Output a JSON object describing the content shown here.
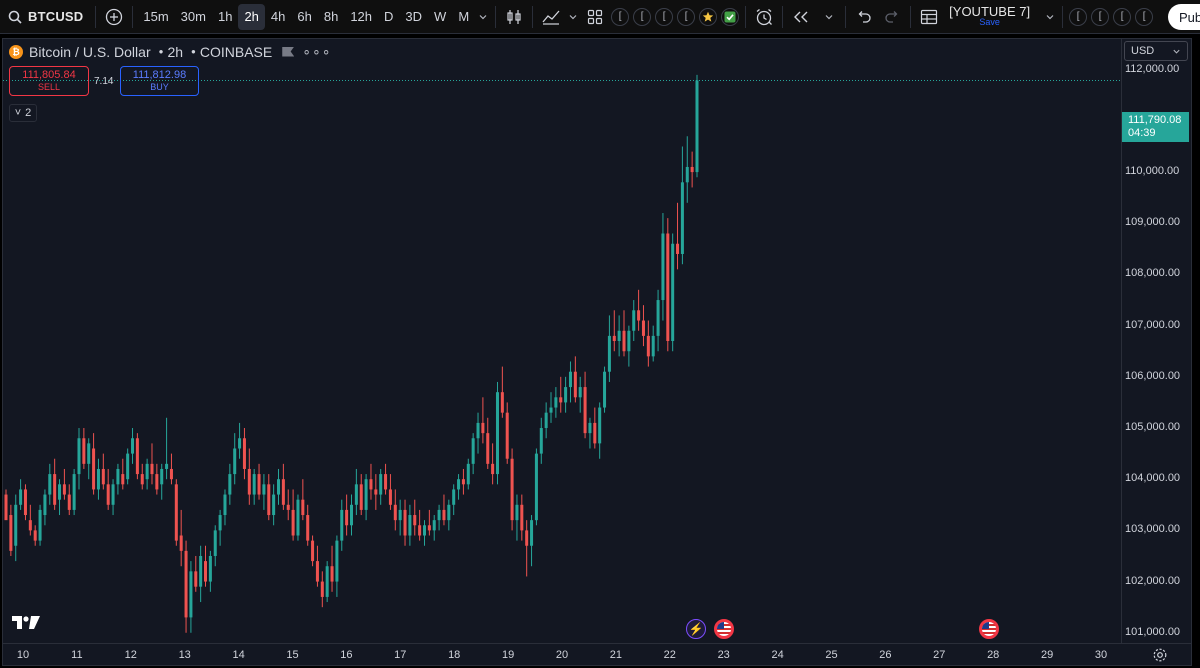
{
  "toolbar": {
    "symbol": "BTCUSD",
    "intervals": [
      "15m",
      "30m",
      "1h",
      "2h",
      "4h",
      "6h",
      "8h",
      "12h",
      "D",
      "3D",
      "W",
      "M"
    ],
    "active_interval": "2h",
    "pill_glyphs": [
      "[",
      "[",
      "[",
      "[",
      "[",
      "[",
      "[",
      "["
    ],
    "layout_title": "[YOUTUBE 7]",
    "layout_save": "Save",
    "publish_label": "Pub"
  },
  "legend": {
    "badge": "₿",
    "name": "Bitcoin",
    "separator": "/",
    "quote": "U.S. Dollar",
    "interval": "2h",
    "exchange": "COINBASE",
    "more": "∘∘∘"
  },
  "trade": {
    "sell_price": "111,805.84",
    "sell_label": "SELL",
    "spread": "7.14",
    "buy_price": "111,812.98",
    "buy_label": "BUY"
  },
  "collapse": {
    "chevron": "˅",
    "count": "2"
  },
  "currency": "USD",
  "current_price": {
    "value": "111,790.08",
    "countdown": "04:39"
  },
  "chart_data": {
    "type": "candlestick",
    "symbol": "BTCUSD",
    "ylim": [
      100800,
      112600
    ],
    "price_ticks": [
      "112,000.00",
      "111,000.00",
      "110,000.00",
      "109,000.00",
      "108,000.00",
      "107,000.00",
      "106,000.00",
      "105,000.00",
      "104,000.00",
      "103,000.00",
      "102,000.00",
      "101,000.00"
    ],
    "date_ticks": [
      "10",
      "11",
      "12",
      "13",
      "14",
      "15",
      "16",
      "17",
      "18",
      "19",
      "20",
      "21",
      "22",
      "23",
      "24",
      "25",
      "26",
      "27",
      "28",
      "29",
      "30"
    ],
    "last_price": 111790.08,
    "candles": [
      [
        103700,
        103800,
        103300,
        103200
      ],
      [
        103300,
        103500,
        102500,
        102600
      ],
      [
        102700,
        103700,
        102400,
        103500
      ],
      [
        103500,
        104000,
        103400,
        103800
      ],
      [
        103800,
        103900,
        103200,
        103300
      ],
      [
        103200,
        103500,
        102900,
        103000
      ],
      [
        103000,
        103100,
        102700,
        102800
      ],
      [
        102800,
        103500,
        102700,
        103400
      ],
      [
        103300,
        103800,
        103100,
        103700
      ],
      [
        103700,
        104300,
        103500,
        104100
      ],
      [
        104100,
        104400,
        103400,
        103500
      ],
      [
        103600,
        104000,
        103300,
        103900
      ],
      [
        103900,
        104200,
        103600,
        103700
      ],
      [
        103700,
        103900,
        103300,
        103400
      ],
      [
        103400,
        104200,
        103300,
        104100
      ],
      [
        104100,
        105000,
        103800,
        104800
      ],
      [
        104800,
        105000,
        104200,
        104300
      ],
      [
        104300,
        104800,
        104000,
        104700
      ],
      [
        104600,
        104900,
        103700,
        103800
      ],
      [
        103800,
        104400,
        103600,
        104200
      ],
      [
        104200,
        104500,
        103800,
        103900
      ],
      [
        103900,
        104200,
        103400,
        103500
      ],
      [
        103500,
        104000,
        103300,
        103900
      ],
      [
        103900,
        104300,
        103700,
        104200
      ],
      [
        104100,
        104400,
        103800,
        103900
      ],
      [
        104000,
        104600,
        103900,
        104500
      ],
      [
        104500,
        105000,
        104300,
        104800
      ],
      [
        104800,
        104900,
        104000,
        104100
      ],
      [
        104100,
        104300,
        103800,
        103900
      ],
      [
        104000,
        104400,
        103800,
        104300
      ],
      [
        104300,
        104700,
        103900,
        104100
      ],
      [
        104100,
        104300,
        103700,
        103800
      ],
      [
        103900,
        104300,
        103600,
        104200
      ],
      [
        104200,
        105200,
        104000,
        104300
      ],
      [
        104200,
        104500,
        103900,
        104000
      ],
      [
        103900,
        104000,
        102700,
        102800
      ],
      [
        102900,
        103400,
        102300,
        102600
      ],
      [
        102600,
        102800,
        101000,
        101300
      ],
      [
        101300,
        102400,
        101000,
        102200
      ],
      [
        102200,
        102500,
        101800,
        101900
      ],
      [
        101900,
        102700,
        101600,
        102500
      ],
      [
        102400,
        102700,
        101900,
        102000
      ],
      [
        102000,
        102600,
        101800,
        102500
      ],
      [
        102500,
        103100,
        102300,
        103000
      ],
      [
        103000,
        103400,
        102700,
        103300
      ],
      [
        103300,
        103800,
        103100,
        103700
      ],
      [
        103700,
        104300,
        103500,
        104100
      ],
      [
        104100,
        104900,
        103900,
        104600
      ],
      [
        104600,
        105100,
        104400,
        104800
      ],
      [
        104800,
        105000,
        104000,
        104200
      ],
      [
        104200,
        104600,
        103500,
        103700
      ],
      [
        103700,
        104200,
        103500,
        104100
      ],
      [
        104100,
        104300,
        103600,
        103700
      ],
      [
        103700,
        104100,
        103400,
        103900
      ],
      [
        103900,
        104100,
        103200,
        103300
      ],
      [
        103300,
        103900,
        103100,
        103700
      ],
      [
        103700,
        104200,
        103500,
        104000
      ],
      [
        104000,
        104300,
        103400,
        103500
      ],
      [
        103500,
        103800,
        103200,
        103400
      ],
      [
        103400,
        103800,
        102800,
        102900
      ],
      [
        102900,
        103700,
        102800,
        103600
      ],
      [
        103600,
        104000,
        103200,
        103300
      ],
      [
        103300,
        103500,
        102700,
        102800
      ],
      [
        102800,
        102900,
        102300,
        102400
      ],
      [
        102400,
        102700,
        101900,
        102000
      ],
      [
        102000,
        102200,
        101500,
        101700
      ],
      [
        101700,
        102400,
        101600,
        102300
      ],
      [
        102300,
        102700,
        101800,
        102000
      ],
      [
        102000,
        102900,
        101700,
        102800
      ],
      [
        102800,
        103600,
        102600,
        103400
      ],
      [
        103400,
        103700,
        102900,
        103100
      ],
      [
        103100,
        103700,
        102900,
        103500
      ],
      [
        103500,
        104200,
        103300,
        103900
      ],
      [
        103900,
        104100,
        103300,
        103400
      ],
      [
        103400,
        104100,
        103200,
        104000
      ],
      [
        104000,
        104300,
        103600,
        103800
      ],
      [
        103800,
        104100,
        103400,
        103700
      ],
      [
        103700,
        104200,
        103500,
        104100
      ],
      [
        104100,
        104300,
        103700,
        103800
      ],
      [
        103800,
        104100,
        103400,
        103500
      ],
      [
        103500,
        103800,
        103000,
        103200
      ],
      [
        103200,
        103600,
        102900,
        103400
      ],
      [
        103400,
        103600,
        102700,
        102900
      ],
      [
        102900,
        103500,
        102700,
        103300
      ],
      [
        103300,
        103600,
        102900,
        103100
      ],
      [
        103100,
        103400,
        102800,
        102900
      ],
      [
        102900,
        103200,
        102700,
        103100
      ],
      [
        103100,
        103400,
        102900,
        103000
      ],
      [
        103000,
        103300,
        102800,
        103200
      ],
      [
        103200,
        103500,
        103000,
        103400
      ],
      [
        103400,
        103700,
        103100,
        103200
      ],
      [
        103200,
        103600,
        103000,
        103500
      ],
      [
        103500,
        103900,
        103300,
        103800
      ],
      [
        103800,
        104100,
        103600,
        104000
      ],
      [
        104000,
        104200,
        103700,
        103900
      ],
      [
        103900,
        104400,
        103800,
        104300
      ],
      [
        104300,
        104900,
        104100,
        104800
      ],
      [
        104800,
        105300,
        104500,
        105100
      ],
      [
        105100,
        105600,
        104700,
        104900
      ],
      [
        104900,
        105200,
        104200,
        104300
      ],
      [
        104300,
        104700,
        103900,
        104100
      ],
      [
        104100,
        105900,
        103900,
        105700
      ],
      [
        105700,
        106200,
        105200,
        105300
      ],
      [
        105300,
        105500,
        104300,
        104400
      ],
      [
        104400,
        104600,
        103000,
        103200
      ],
      [
        103200,
        103700,
        102800,
        103500
      ],
      [
        103500,
        103700,
        102800,
        103000
      ],
      [
        103000,
        103200,
        102100,
        102700
      ],
      [
        102700,
        103300,
        102300,
        103200
      ],
      [
        103200,
        104600,
        103100,
        104500
      ],
      [
        104500,
        105200,
        104300,
        105000
      ],
      [
        105000,
        105500,
        104800,
        105300
      ],
      [
        105300,
        105700,
        105100,
        105400
      ],
      [
        105400,
        105800,
        105200,
        105600
      ],
      [
        105600,
        106000,
        105300,
        105500
      ],
      [
        105500,
        106000,
        105300,
        105800
      ],
      [
        105800,
        106300,
        105500,
        106100
      ],
      [
        106100,
        106400,
        105500,
        105600
      ],
      [
        105600,
        106000,
        105300,
        105800
      ],
      [
        105800,
        106100,
        104800,
        104900
      ],
      [
        104900,
        105200,
        104600,
        105100
      ],
      [
        105100,
        105400,
        104600,
        104700
      ],
      [
        104700,
        105500,
        104400,
        105400
      ],
      [
        105400,
        106200,
        105300,
        106100
      ],
      [
        106100,
        107200,
        105900,
        106800
      ],
      [
        106800,
        107300,
        106500,
        106700
      ],
      [
        106700,
        107200,
        106400,
        106900
      ],
      [
        106900,
        107300,
        106400,
        106500
      ],
      [
        106500,
        107000,
        106200,
        106900
      ],
      [
        106900,
        107500,
        106700,
        107300
      ],
      [
        107300,
        107700,
        106900,
        107100
      ],
      [
        107100,
        107400,
        106600,
        106800
      ],
      [
        106800,
        107100,
        106200,
        106400
      ],
      [
        106400,
        107000,
        106300,
        106800
      ],
      [
        106800,
        107700,
        106500,
        107500
      ],
      [
        107500,
        109200,
        107100,
        108800
      ],
      [
        108800,
        109100,
        106500,
        106700
      ],
      [
        106700,
        108800,
        106500,
        108600
      ],
      [
        108600,
        109400,
        108100,
        108400
      ],
      [
        108400,
        110500,
        108200,
        109800
      ],
      [
        109800,
        110700,
        109400,
        110100
      ],
      [
        110100,
        110400,
        109700,
        110000
      ],
      [
        110000,
        111900,
        109900,
        111790
      ]
    ]
  }
}
